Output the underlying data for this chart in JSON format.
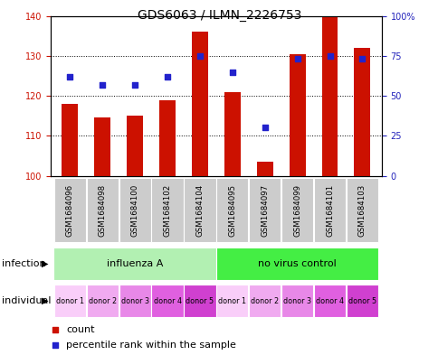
{
  "title": "GDS6063 / ILMN_2226753",
  "categories": [
    "GSM1684096",
    "GSM1684098",
    "GSM1684100",
    "GSM1684102",
    "GSM1684104",
    "GSM1684095",
    "GSM1684097",
    "GSM1684099",
    "GSM1684101",
    "GSM1684103"
  ],
  "counts": [
    118,
    114.5,
    115,
    119,
    136,
    121,
    103.5,
    130.5,
    140,
    132
  ],
  "percentile_ranks": [
    62,
    57,
    57,
    62,
    75,
    65,
    30,
    73,
    75,
    73
  ],
  "ylim_left": [
    100,
    140
  ],
  "ylim_right": [
    0,
    100
  ],
  "yticks_left": [
    100,
    110,
    120,
    130,
    140
  ],
  "yticks_right": [
    0,
    25,
    50,
    75,
    100
  ],
  "infection_groups": [
    {
      "label": "influenza A",
      "start": 0,
      "end": 5,
      "color": "#b2f0b2"
    },
    {
      "label": "no virus control",
      "start": 5,
      "end": 10,
      "color": "#44ee44"
    }
  ],
  "individual_labels": [
    "donor 1",
    "donor 2",
    "donor 3",
    "donor 4",
    "donor 5",
    "donor 1",
    "donor 2",
    "donor 3",
    "donor 4",
    "donor 5"
  ],
  "individual_colors": [
    "#f9cef9",
    "#f0aaf0",
    "#e888e8",
    "#e060e0",
    "#d040d0",
    "#f9cef9",
    "#f0aaf0",
    "#e888e8",
    "#e060e0",
    "#d040d0"
  ],
  "bar_color": "#cc1100",
  "dot_color": "#2222cc",
  "plot_bg": "#ffffff",
  "left_axis_color": "#cc1100",
  "right_axis_color": "#2222bb",
  "infection_row_label": "infection",
  "individual_row_label": "individual",
  "legend_count_label": "count",
  "legend_percentile_label": "percentile rank within the sample",
  "title_fontsize": 10,
  "tick_fontsize": 7,
  "label_fontsize": 8
}
